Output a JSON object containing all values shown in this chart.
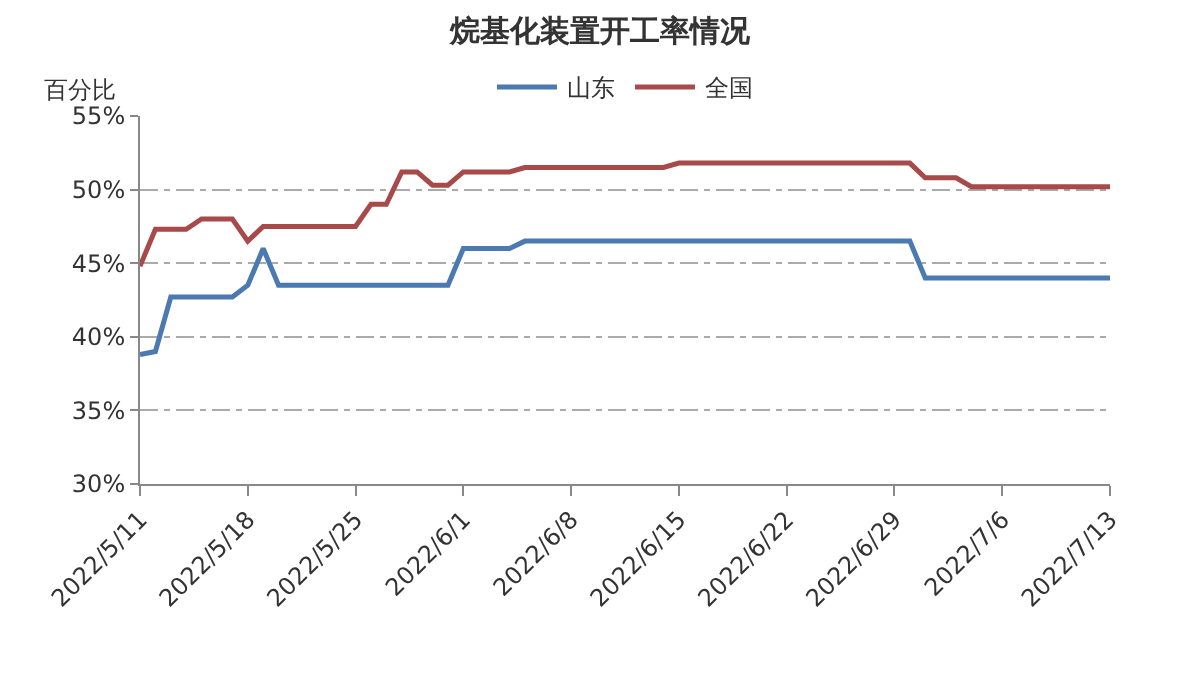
{
  "chart_data": {
    "type": "line",
    "title": "烷基化装置开工率情况",
    "ylabel": "百分比",
    "series": [
      {
        "name": "山东",
        "color": "#4a7ab0",
        "x": [
          "2022-05-11",
          "2022-05-12",
          "2022-05-13",
          "2022-05-17",
          "2022-05-18",
          "2022-05-19",
          "2022-05-20",
          "2022-05-31",
          "2022-06-01",
          "2022-06-04",
          "2022-06-05",
          "2022-06-30",
          "2022-07-01",
          "2022-07-13"
        ],
        "values": [
          38.8,
          39,
          42.7,
          42.7,
          43.5,
          46,
          43.5,
          43.5,
          46,
          46,
          46.5,
          46.5,
          44,
          44
        ]
      },
      {
        "name": "全国",
        "color": "#a84a4a",
        "x": [
          "2022-05-11",
          "2022-05-12",
          "2022-05-14",
          "2022-05-15",
          "2022-05-17",
          "2022-05-18",
          "2022-05-19",
          "2022-05-25",
          "2022-05-26",
          "2022-05-27",
          "2022-05-28",
          "2022-05-29",
          "2022-05-30",
          "2022-05-31",
          "2022-06-01",
          "2022-06-04",
          "2022-06-05",
          "2022-06-14",
          "2022-06-15",
          "2022-06-30",
          "2022-07-01",
          "2022-07-03",
          "2022-07-04",
          "2022-07-13"
        ],
        "values": [
          44.8,
          47.3,
          47.3,
          48,
          48,
          46.5,
          47.5,
          47.5,
          49,
          49,
          51.2,
          51.2,
          50.3,
          50.3,
          51.2,
          51.2,
          51.5,
          51.5,
          51.8,
          51.8,
          50.8,
          50.8,
          50.2,
          50.2
        ]
      }
    ],
    "xlim": [
      "2022-05-11",
      "2022-07-13"
    ],
    "xticks": [
      {
        "value": "2022-05-11",
        "label": "2022/5/11"
      },
      {
        "value": "2022-05-18",
        "label": "2022/5/18"
      },
      {
        "value": "2022-05-25",
        "label": "2022/5/25"
      },
      {
        "value": "2022-06-01",
        "label": "2022/6/1"
      },
      {
        "value": "2022-06-08",
        "label": "2022/6/8"
      },
      {
        "value": "2022-06-15",
        "label": "2022/6/15"
      },
      {
        "value": "2022-06-22",
        "label": "2022/6/22"
      },
      {
        "value": "2022-06-29",
        "label": "2022/6/29"
      },
      {
        "value": "2022-07-06",
        "label": "2022/7/6"
      },
      {
        "value": "2022-07-13",
        "label": "2022/7/13"
      }
    ],
    "ylim": [
      30,
      55
    ],
    "yticks": [
      {
        "value": 30,
        "label": "30%"
      },
      {
        "value": 35,
        "label": "35%"
      },
      {
        "value": 40,
        "label": "40%"
      },
      {
        "value": 45,
        "label": "45%"
      },
      {
        "value": 50,
        "label": "50%"
      },
      {
        "value": 55,
        "label": "55%"
      }
    ],
    "grid": "y",
    "legend": "top",
    "marker": "none",
    "line_style": "solid"
  }
}
